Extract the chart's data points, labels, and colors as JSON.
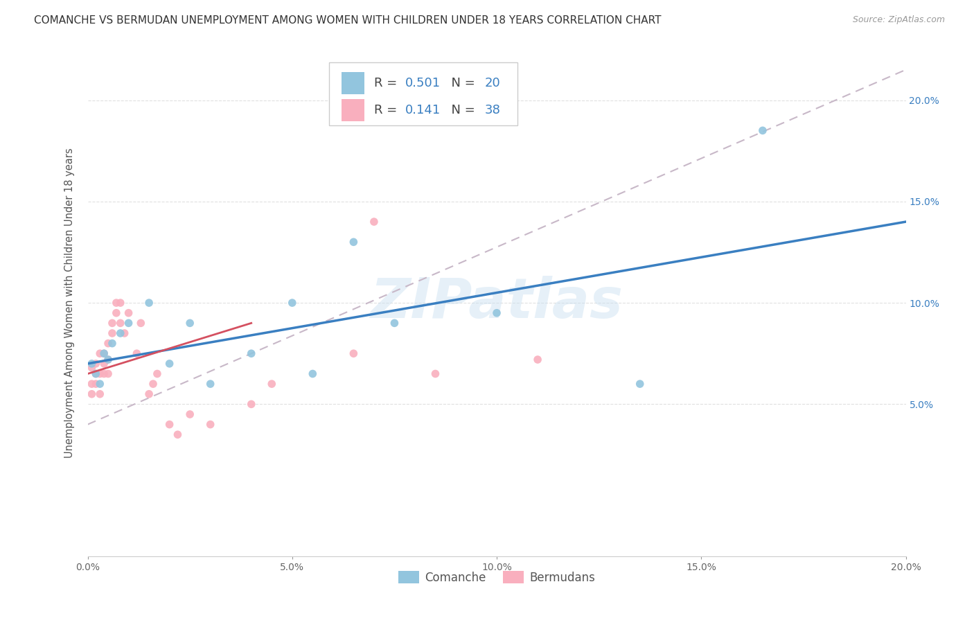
{
  "title": "COMANCHE VS BERMUDAN UNEMPLOYMENT AMONG WOMEN WITH CHILDREN UNDER 18 YEARS CORRELATION CHART",
  "source": "Source: ZipAtlas.com",
  "ylabel": "Unemployment Among Women with Children Under 18 years",
  "R_comanche": 0.501,
  "N_comanche": 20,
  "R_bermudan": 0.141,
  "N_bermudan": 38,
  "legend_comanche": "Comanche",
  "legend_bermudan": "Bermudans",
  "comanche_color": "#92C5DE",
  "bermudan_color": "#F9AFBE",
  "comanche_line_color": "#3A7FC1",
  "bermudan_line_color": "#D45060",
  "dashed_line_color": "#C8B8C8",
  "watermark": "ZIPatlas",
  "xlim": [
    0.0,
    0.2
  ],
  "ylim": [
    -0.025,
    0.225
  ],
  "y_ticks": [
    0.05,
    0.1,
    0.15,
    0.2
  ],
  "x_ticks": [
    0.0,
    0.05,
    0.1,
    0.15,
    0.2
  ],
  "background_color": "#FFFFFF",
  "grid_color": "#E0E0E0",
  "title_fontsize": 11,
  "axis_label_fontsize": 10.5,
  "tick_fontsize": 10,
  "marker_size": 70,
  "comanche_x": [
    0.001,
    0.002,
    0.003,
    0.004,
    0.005,
    0.006,
    0.008,
    0.01,
    0.015,
    0.02,
    0.025,
    0.03,
    0.04,
    0.05,
    0.055,
    0.065,
    0.075,
    0.1,
    0.135,
    0.165
  ],
  "comanche_y": [
    0.07,
    0.065,
    0.06,
    0.075,
    0.072,
    0.08,
    0.085,
    0.09,
    0.1,
    0.07,
    0.09,
    0.06,
    0.075,
    0.1,
    0.065,
    0.13,
    0.09,
    0.095,
    0.06,
    0.185
  ],
  "bermudan_x": [
    0.001,
    0.001,
    0.001,
    0.002,
    0.002,
    0.002,
    0.003,
    0.003,
    0.003,
    0.004,
    0.004,
    0.004,
    0.005,
    0.005,
    0.005,
    0.006,
    0.006,
    0.007,
    0.007,
    0.008,
    0.008,
    0.009,
    0.01,
    0.012,
    0.013,
    0.015,
    0.016,
    0.017,
    0.02,
    0.022,
    0.025,
    0.03,
    0.04,
    0.045,
    0.065,
    0.07,
    0.085,
    0.11
  ],
  "bermudan_y": [
    0.068,
    0.06,
    0.055,
    0.07,
    0.065,
    0.06,
    0.075,
    0.065,
    0.055,
    0.07,
    0.075,
    0.065,
    0.08,
    0.072,
    0.065,
    0.085,
    0.09,
    0.095,
    0.1,
    0.1,
    0.09,
    0.085,
    0.095,
    0.075,
    0.09,
    0.055,
    0.06,
    0.065,
    0.04,
    0.035,
    0.045,
    0.04,
    0.05,
    0.06,
    0.075,
    0.14,
    0.065,
    0.072
  ],
  "blue_line_x0": 0.0,
  "blue_line_y0": 0.07,
  "blue_line_x1": 0.2,
  "blue_line_y1": 0.14,
  "pink_line_x0": 0.0,
  "pink_line_y0": 0.065,
  "pink_line_x1": 0.04,
  "pink_line_y1": 0.09,
  "dashed_line_x0": 0.0,
  "dashed_line_y0": 0.04,
  "dashed_line_x1": 0.2,
  "dashed_line_y1": 0.215
}
